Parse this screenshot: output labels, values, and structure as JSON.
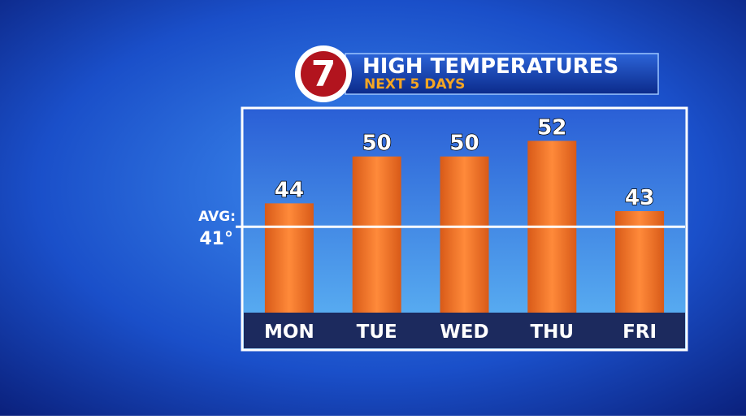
{
  "chart_data": {
    "type": "bar",
    "logo": "7",
    "title": "HIGH TEMPERATURES",
    "subtitle": "NEXT 5 DAYS",
    "categories": [
      "MON",
      "TUE",
      "WED",
      "THU",
      "FRI"
    ],
    "values": [
      44,
      50,
      50,
      52,
      43
    ],
    "color": "#f07a2a",
    "ylim": [
      30,
      56
    ],
    "avg": {
      "label": "AVG:",
      "value": 41,
      "value_label": "41°"
    }
  }
}
